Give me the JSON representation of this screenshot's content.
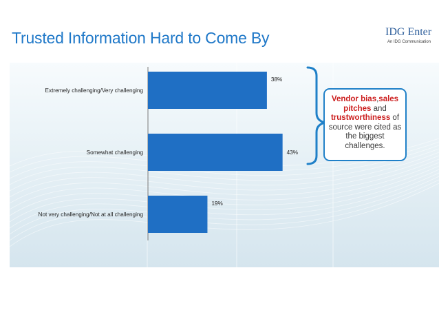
{
  "header": {
    "title": "Trusted Information Hard to Come By",
    "brand": "IDG Enter",
    "brand_sub": "An IDG Communication"
  },
  "chart_data": {
    "type": "bar",
    "orientation": "horizontal",
    "categories": [
      "Extremely challenging/Very challenging",
      "Somewhat challenging",
      "Not very challenging/Not at all challenging"
    ],
    "values": [
      38,
      43,
      19
    ],
    "data_labels": [
      "38%",
      "43%",
      "19%"
    ],
    "xlim": [
      0,
      50
    ],
    "bar_color": "#1f6fc4",
    "grid": false,
    "legend": "none"
  },
  "callout": {
    "segments": [
      {
        "text": "Vendor bias",
        "highlight": true
      },
      {
        "text": ",",
        "highlight": false
      },
      {
        "text": "sales pitches",
        "highlight": true
      },
      {
        "text": " and ",
        "highlight": false
      },
      {
        "text": "trustworthiness",
        "highlight": true
      },
      {
        "text": " of source were cited as the biggest challenges.",
        "highlight": false
      }
    ],
    "accent_color": "#cc1f1f",
    "border_color": "#1f80c8"
  }
}
